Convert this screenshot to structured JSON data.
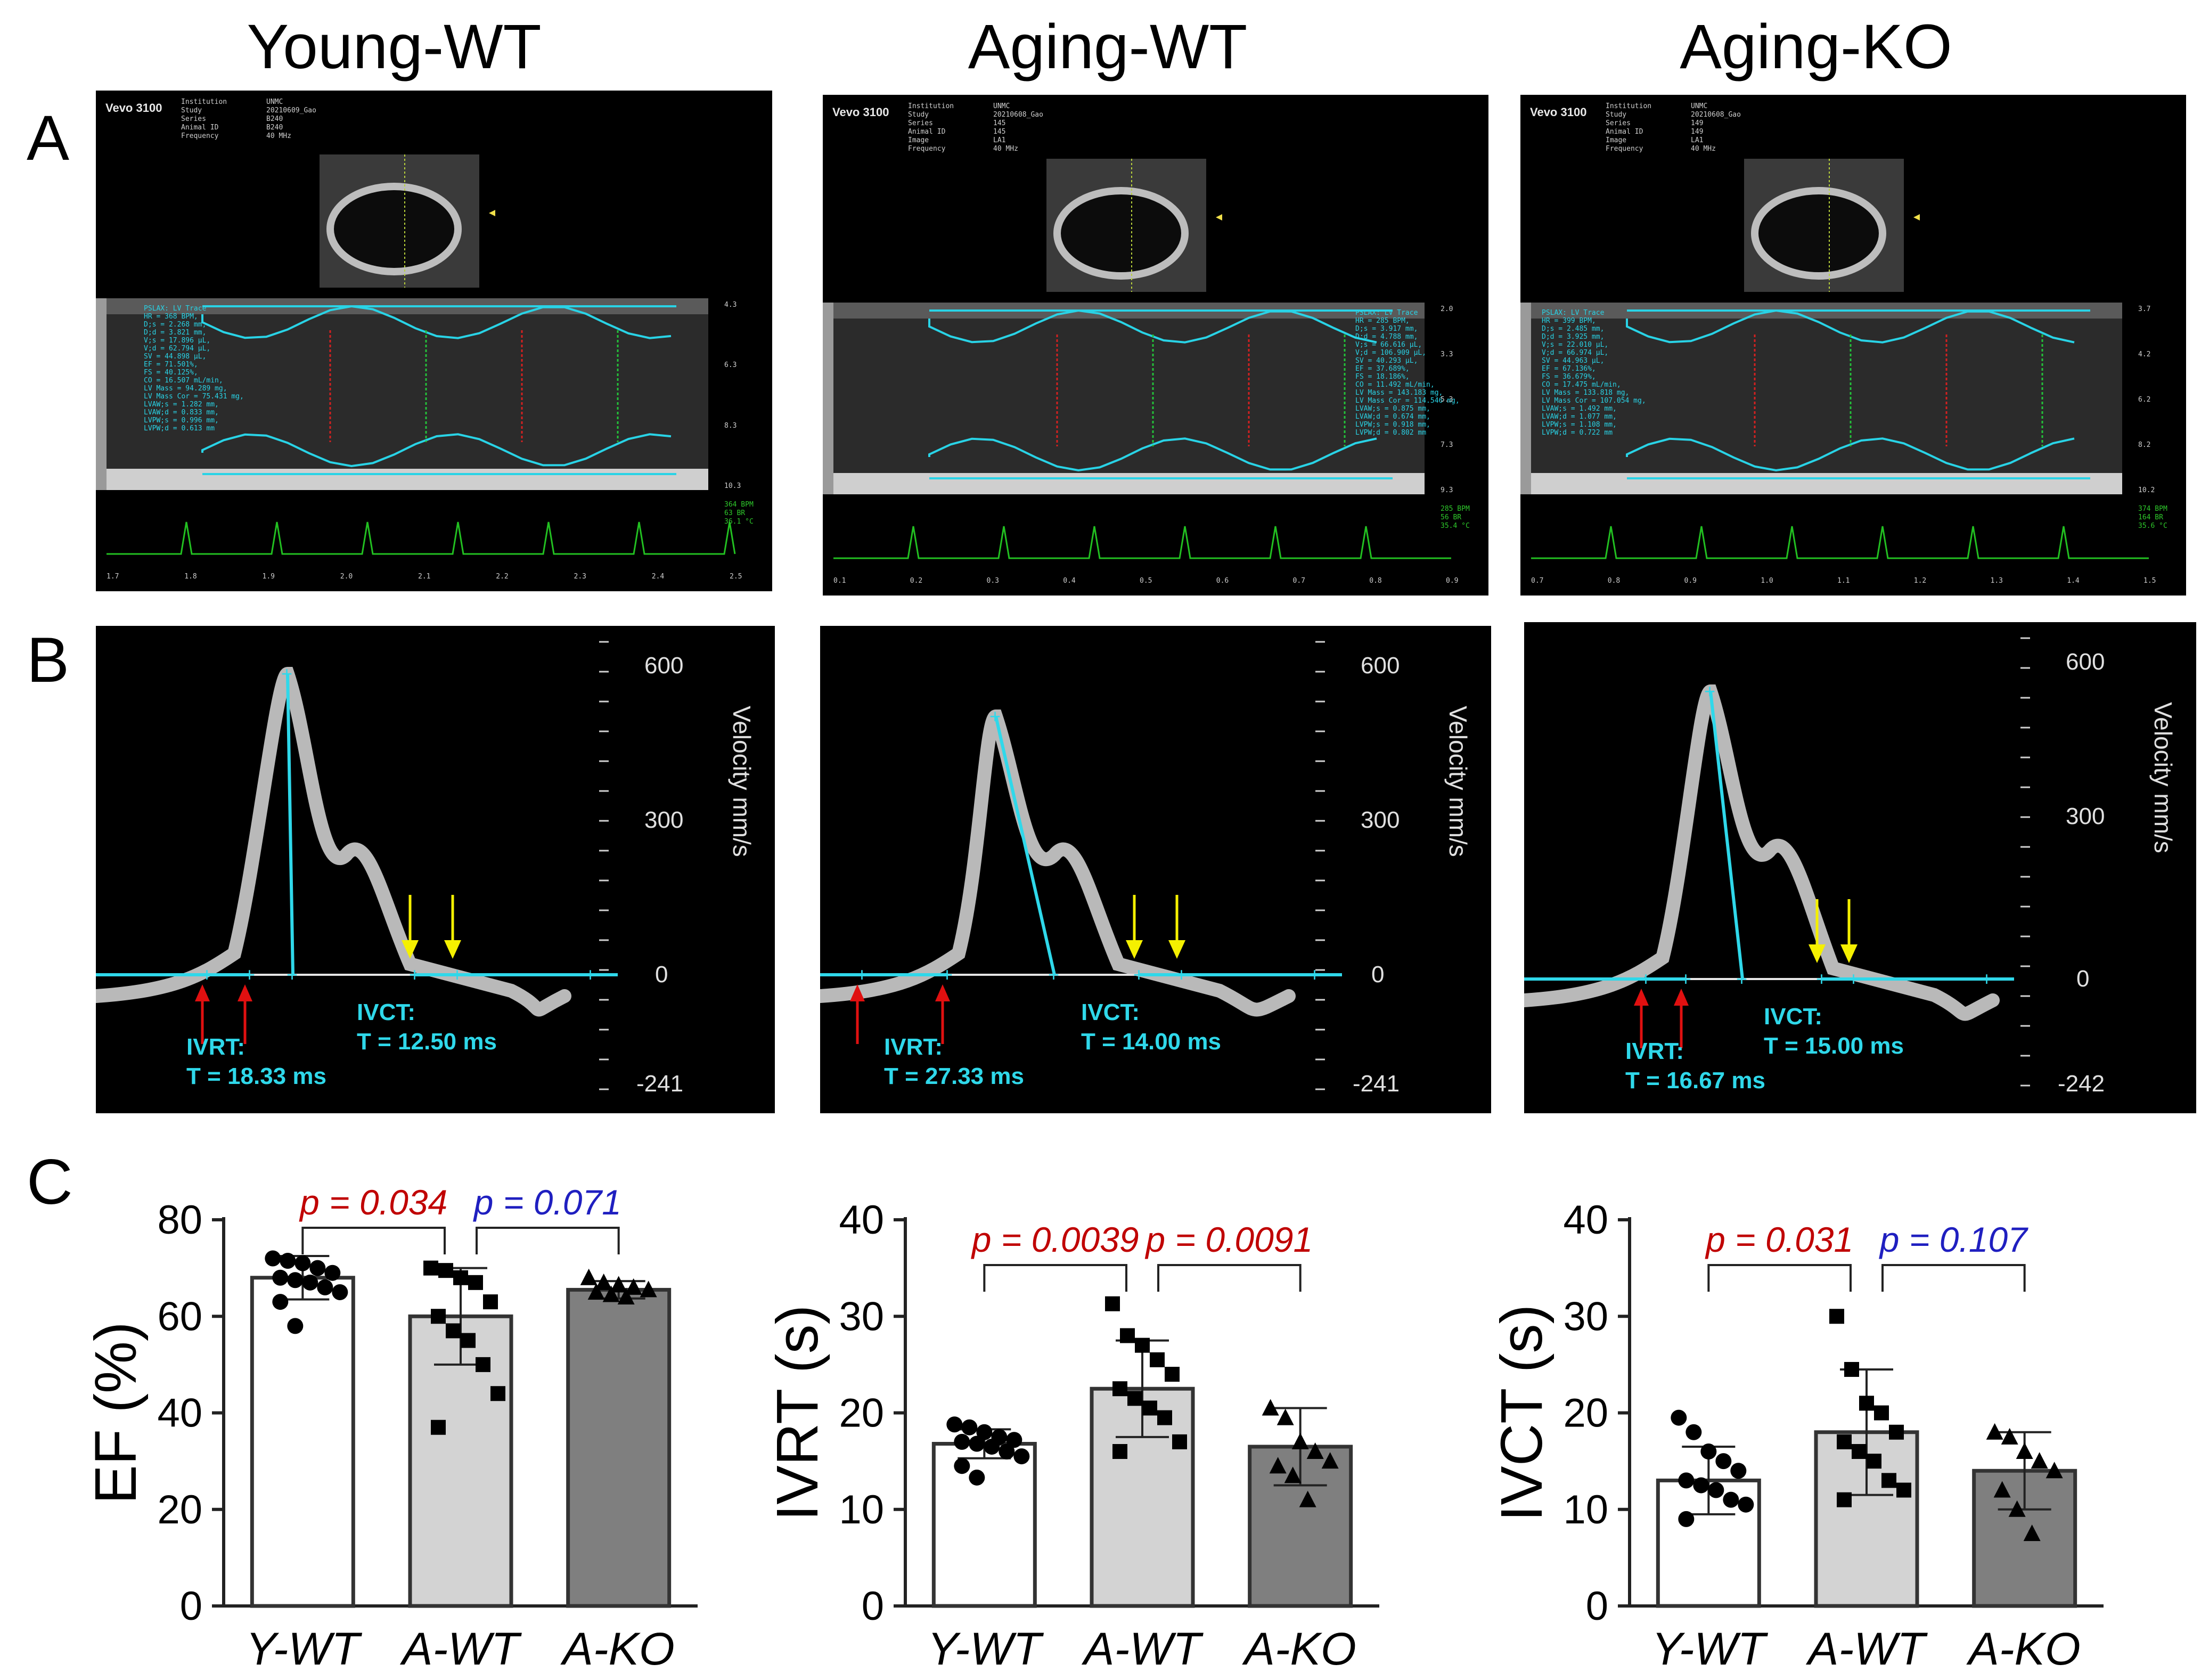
{
  "columns": [
    "Young-WT",
    "Aging-WT",
    "Aging-KO"
  ],
  "panel_letters": [
    "A",
    "B",
    "C"
  ],
  "echo_panels": [
    {
      "brand": "Vevo 3100",
      "info_labels": [
        "Institution",
        "Study",
        "Series",
        "Animal ID",
        "Frequency"
      ],
      "info_values": [
        "UNMC",
        "20210609_Gao",
        "B240",
        "B240",
        "40 MHz"
      ],
      "measurements": [
        "PSLAX: LV Trace",
        "HR = 368 BPM,",
        "D;s = 2.268 mm,",
        "D;d = 3.821 mm,",
        "V;s = 17.896 μL,",
        "V;d = 62.794 μL,",
        "SV = 44.898 μL,",
        "EF = 71.501%,",
        "FS = 40.125%,",
        "CO = 16.507 mL/min,",
        "LV Mass = 94.289 mg,",
        "LV Mass Cor = 75.431 mg,",
        "LVAW;s = 1.282 mm,",
        "LVAW;d = 0.833 mm,",
        "LVPW;s = 0.996 mm,",
        "LVPW;d = 0.613 mm"
      ],
      "depth_ticks": [
        "4.3",
        "6.3",
        "8.3",
        "10.3"
      ],
      "time_ticks": [
        "1.7",
        "1.8",
        "1.9",
        "2.0",
        "2.1",
        "2.2",
        "2.3",
        "2.4",
        "2.5"
      ],
      "vitals": [
        "364 BPM",
        "63 BR",
        "36.1 °C"
      ]
    },
    {
      "brand": "Vevo 3100",
      "info_labels": [
        "Institution",
        "Study",
        "Series",
        "Animal ID",
        "Image",
        "Frequency"
      ],
      "info_values": [
        "UNMC",
        "20210608_Gao",
        "145",
        "145",
        "LA1",
        "40 MHz"
      ],
      "measurements": [
        "PSLAX: LV Trace",
        "HR = 285 BPM,",
        "D;s = 3.917 mm,",
        "D;d = 4.788 mm,",
        "V;s = 66.616 μL,",
        "V;d = 106.909 μL,",
        "SV = 40.293 μL,",
        "EF = 37.689%,",
        "FS = 18.186%,",
        "CO = 11.492 mL/min,",
        "LV Mass = 143.183 mg,",
        "LV Mass Cor = 114.546 mg,",
        "LVAW;s = 0.875 mm,",
        "LVAW;d = 0.674 mm,",
        "LVPW;s = 0.918 mm,",
        "LVPW;d = 0.802 mm"
      ],
      "depth_ticks": [
        "2.0",
        "3.3",
        "5.3",
        "7.3",
        "9.3"
      ],
      "time_ticks": [
        "0.1",
        "0.2",
        "0.3",
        "0.4",
        "0.5",
        "0.6",
        "0.7",
        "0.8",
        "0.9"
      ],
      "vitals": [
        "285 BPM",
        "56 BR",
        "35.4 °C"
      ]
    },
    {
      "brand": "Vevo 3100",
      "info_labels": [
        "Institution",
        "Study",
        "Series",
        "Animal ID",
        "Image",
        "Frequency"
      ],
      "info_values": [
        "UNMC",
        "20210608_Gao",
        "149",
        "149",
        "LA1",
        "40 MHz"
      ],
      "measurements": [
        "PSLAX: LV Trace",
        "HR = 399 BPM,",
        "D;s = 2.485 mm,",
        "D;d = 3.925 mm,",
        "V;s = 22.010 μL,",
        "V;d = 66.974 μL,",
        "SV = 44.963 μL,",
        "EF = 67.136%,",
        "FS = 36.679%,",
        "CO = 17.475 mL/min,",
        "LV Mass = 133.818 mg,",
        "LV Mass Cor = 107.054 mg,",
        "LVAW;s = 1.492 mm,",
        "LVAW;d = 1.077 mm,",
        "LVPW;s = 1.108 mm,",
        "LVPW;d = 0.722 mm"
      ],
      "depth_ticks": [
        "3.7",
        "4.2",
        "6.2",
        "8.2",
        "10.2"
      ],
      "time_ticks": [
        "0.7",
        "0.8",
        "0.9",
        "1.0",
        "1.1",
        "1.2",
        "1.3",
        "1.4",
        "1.5"
      ],
      "vitals": [
        "374 BPM",
        "164 BR",
        "35.6 °C"
      ]
    }
  ],
  "doppler_panels": [
    {
      "ivrt_label": "IVRT:",
      "ivrt_value": "T = 18.33 ms",
      "ivct_label": "IVCT:",
      "ivct_value": "T = 12.50 ms",
      "scale_top": "600",
      "scale_mid": "300",
      "scale_zero": "0",
      "scale_bottom": "-241",
      "axis_label": "Velocity mm/s"
    },
    {
      "ivrt_label": "IVRT:",
      "ivrt_value": "T = 27.33 ms",
      "ivct_label": "IVCT:",
      "ivct_value": "T = 14.00 ms",
      "scale_top": "600",
      "scale_mid": "300",
      "scale_zero": "0",
      "scale_bottom": "-241",
      "axis_label": "Velocity mm/s"
    },
    {
      "ivrt_label": "IVRT:",
      "ivrt_value": "T = 16.67 ms",
      "ivct_label": "IVCT:",
      "ivct_value": "T = 15.00 ms",
      "scale_top": "600",
      "scale_mid": "300",
      "scale_zero": "0",
      "scale_bottom": "-242",
      "axis_label": "Velocity mm/s"
    }
  ],
  "colors": {
    "young": "#ffffff",
    "aging_wt": "#d3d3d3",
    "aging_ko": "#7f7f7f",
    "sig": "#c00000",
    "trend": "#1f1fc0",
    "cyan": "#2fd8ea"
  },
  "chart_data": [
    {
      "type": "bar",
      "title": "",
      "ylabel": "EF (%)",
      "xlabel": "",
      "ylim": [
        0,
        80
      ],
      "yticks": [
        0,
        20,
        40,
        60,
        80
      ],
      "categories": [
        "Y-WT",
        "A-WT",
        "A-KO"
      ],
      "values": [
        68,
        60,
        65.5
      ],
      "sd": [
        4.5,
        10,
        1.8
      ],
      "markers": [
        "circle",
        "square",
        "triangle"
      ],
      "points": [
        [
          72,
          71.5,
          71,
          70,
          69,
          68,
          67.5,
          67,
          66,
          65,
          63,
          58
        ],
        [
          70,
          69.5,
          68,
          67,
          63,
          60,
          57,
          55,
          50,
          44,
          37
        ],
        [
          68,
          67,
          66.5,
          66,
          65.5,
          65,
          64.5,
          64
        ]
      ],
      "comparisons": [
        {
          "pair": [
            0,
            1
          ],
          "label": "p = 0.034",
          "color": "red"
        },
        {
          "pair": [
            1,
            2
          ],
          "label": "p = 0.071",
          "color": "blue"
        }
      ]
    },
    {
      "type": "bar",
      "title": "",
      "ylabel": "IVRT (s)",
      "xlabel": "",
      "ylim": [
        0,
        40
      ],
      "yticks": [
        0,
        10,
        20,
        30,
        40
      ],
      "categories": [
        "Y-WT",
        "A-WT",
        "A-KO"
      ],
      "values": [
        16.8,
        22.5,
        16.5
      ],
      "sd": [
        1.5,
        5,
        4
      ],
      "markers": [
        "circle",
        "square",
        "triangle"
      ],
      "points": [
        [
          18.8,
          18.5,
          18,
          17.5,
          17.2,
          17,
          16.8,
          16.5,
          16,
          15.5,
          14.5,
          13.3
        ],
        [
          31.3,
          28,
          27,
          25.5,
          24,
          22.5,
          21.5,
          20.5,
          19.5,
          17,
          16
        ],
        [
          20.5,
          19.5,
          17,
          16,
          15,
          14.5,
          13.5,
          11
        ]
      ],
      "comparisons": [
        {
          "pair": [
            0,
            1
          ],
          "label": "p = 0.0039",
          "color": "red"
        },
        {
          "pair": [
            1,
            2
          ],
          "label": "p = 0.0091",
          "color": "red"
        }
      ]
    },
    {
      "type": "bar",
      "title": "",
      "ylabel": "IVCT (s)",
      "xlabel": "",
      "ylim": [
        0,
        40
      ],
      "yticks": [
        0,
        10,
        20,
        30,
        40
      ],
      "categories": [
        "Y-WT",
        "A-WT",
        "A-KO"
      ],
      "values": [
        13,
        18,
        14
      ],
      "sd": [
        3.5,
        6.5,
        4
      ],
      "markers": [
        "circle",
        "square",
        "triangle"
      ],
      "points": [
        [
          19.5,
          18,
          16,
          15,
          14,
          13,
          12.5,
          12,
          11,
          10.5,
          9
        ],
        [
          30,
          24.5,
          21,
          20,
          18,
          17,
          16,
          15,
          13,
          12,
          11
        ],
        [
          18,
          17.5,
          16,
          15,
          14,
          12,
          10,
          7.5
        ]
      ],
      "comparisons": [
        {
          "pair": [
            0,
            1
          ],
          "label": "p = 0.031",
          "color": "red"
        },
        {
          "pair": [
            1,
            2
          ],
          "label": "p = 0.107",
          "color": "blue"
        }
      ]
    }
  ]
}
